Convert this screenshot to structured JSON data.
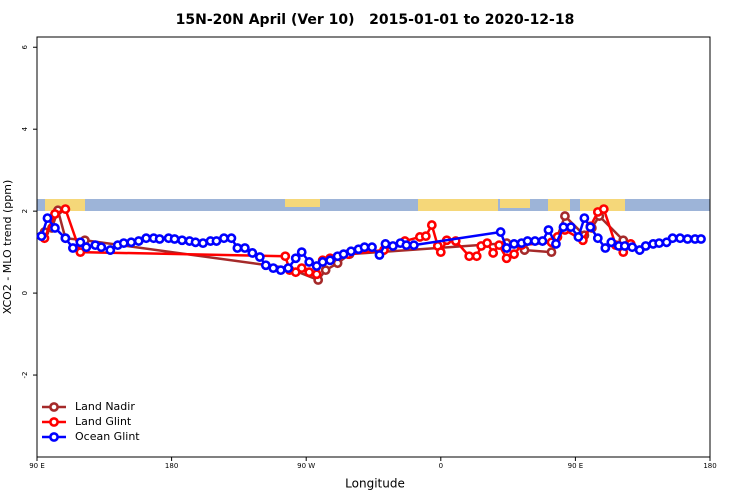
{
  "chart_data": {
    "type": "line",
    "title": "15N-20N April (Ver 10)   2015-01-01 to 2020-12-18",
    "x_label": "Longitude",
    "y_label": "XCO2 - MLO trend (ppm)",
    "xlim": [
      90,
      540
    ],
    "ylim": [
      -4,
      6.25
    ],
    "xticks": [
      {
        "value": 90,
        "label": "90 E"
      },
      180,
      {
        "value": 270,
        "label": "90 W"
      },
      {
        "value": 360,
        "label": "0"
      },
      {
        "value": 450,
        "label": "90 E"
      },
      {
        "value": 540,
        "label": "180"
      }
    ],
    "yticks": [
      -2,
      0,
      2,
      4,
      6
    ],
    "legend": "bottom-left",
    "series": [
      {
        "name": "Land Nadir",
        "color": "#a52a2a",
        "x": [
          95,
          100,
          104,
          109,
          122,
          258,
          278,
          283,
          291,
          299,
          404,
          416,
          434,
          443,
          456,
          461,
          466,
          482
        ],
        "values": [
          1.49,
          1.59,
          2.02,
          1.34,
          1.29,
          0.61,
          0.32,
          0.56,
          0.73,
          0.95,
          1.22,
          1.05,
          1.0,
          1.88,
          1.41,
          1.59,
          1.88,
          1.29
        ]
      },
      {
        "name": "Land Glint",
        "color": "#ff0000",
        "x": [
          95,
          102,
          109,
          119,
          256,
          259,
          263,
          267,
          272,
          277,
          281,
          286,
          298,
          322,
          336,
          346,
          350,
          354,
          358,
          360,
          364,
          370,
          379,
          384,
          387,
          391,
          395,
          399,
          404,
          409,
          414,
          434,
          438,
          443,
          455,
          460,
          465,
          469,
          477,
          482,
          487
        ],
        "values": [
          1.34,
          1.93,
          2.05,
          1.0,
          0.9,
          0.56,
          0.51,
          0.61,
          0.51,
          0.46,
          0.8,
          0.85,
          0.95,
          1.05,
          1.27,
          1.37,
          1.39,
          1.66,
          1.15,
          1.0,
          1.29,
          1.27,
          0.9,
          0.9,
          1.15,
          1.22,
          0.98,
          1.17,
          0.85,
          0.95,
          1.17,
          1.24,
          1.37,
          1.54,
          1.29,
          1.63,
          1.98,
          2.05,
          1.17,
          1.0,
          1.2
        ]
      },
      {
        "name": "Ocean Glint",
        "color": "#0000ff",
        "x": [
          93,
          97,
          102,
          109,
          114,
          119,
          123,
          129,
          133,
          139,
          144,
          148,
          153,
          158,
          163,
          168,
          172,
          178,
          182,
          187,
          192,
          196,
          201,
          206,
          210,
          215,
          220,
          224,
          229,
          234,
          239,
          243,
          248,
          253,
          258,
          263,
          267,
          272,
          277,
          281,
          286,
          291,
          295,
          300,
          305,
          309,
          314,
          319,
          323,
          328,
          333,
          337,
          342,
          400,
          404,
          409,
          414,
          418,
          423,
          428,
          432,
          437,
          442,
          447,
          452,
          456,
          460,
          465,
          470,
          474,
          479,
          483,
          488,
          493,
          497,
          502,
          506,
          511,
          515,
          520,
          525,
          530,
          534
        ],
        "values": [
          1.39,
          1.83,
          1.59,
          1.34,
          1.1,
          1.24,
          1.12,
          1.17,
          1.12,
          1.05,
          1.17,
          1.22,
          1.24,
          1.27,
          1.34,
          1.34,
          1.32,
          1.34,
          1.32,
          1.29,
          1.27,
          1.24,
          1.22,
          1.27,
          1.27,
          1.34,
          1.34,
          1.1,
          1.1,
          0.98,
          0.88,
          0.68,
          0.61,
          0.56,
          0.61,
          0.85,
          1.0,
          0.76,
          0.66,
          0.76,
          0.8,
          0.9,
          0.95,
          1.02,
          1.07,
          1.12,
          1.12,
          0.93,
          1.2,
          1.15,
          1.22,
          1.17,
          1.17,
          1.49,
          1.1,
          1.2,
          1.22,
          1.27,
          1.27,
          1.27,
          1.54,
          1.2,
          1.61,
          1.61,
          1.37,
          1.83,
          1.61,
          1.34,
          1.1,
          1.24,
          1.15,
          1.15,
          1.12,
          1.05,
          1.15,
          1.2,
          1.22,
          1.24,
          1.34,
          1.34,
          1.32,
          1.32,
          1.32
        ]
      }
    ]
  }
}
